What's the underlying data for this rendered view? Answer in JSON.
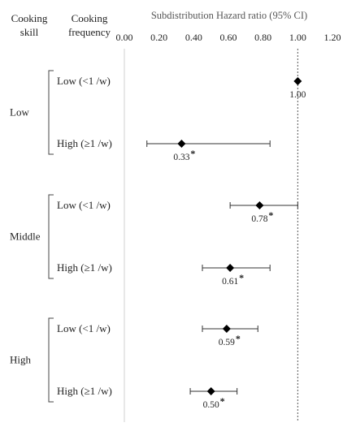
{
  "chart_data": {
    "type": "forest",
    "title": "Subdistribution Hazard ratio (95% CI)",
    "column_headers": {
      "skill": "Cooking skill",
      "frequency": "Cooking frequency"
    },
    "x_ticks": [
      "0.00",
      "0.20",
      "0.40",
      "0.60",
      "0.80",
      "1.00",
      "1.20"
    ],
    "xlim": [
      0,
      1.2
    ],
    "reference_line": 1.0,
    "groups": [
      {
        "skill": "Low",
        "rows": [
          {
            "frequency": "Low (<1 /w)",
            "value": 1.0,
            "ci_low": null,
            "ci_high": null,
            "label": "1.00",
            "significant": false
          },
          {
            "frequency": "High (≥1 /w)",
            "value": 0.33,
            "ci_low": 0.13,
            "ci_high": 0.84,
            "label": "0.33",
            "significant": true
          }
        ]
      },
      {
        "skill": "Middle",
        "rows": [
          {
            "frequency": "Low (<1 /w)",
            "value": 0.78,
            "ci_low": 0.61,
            "ci_high": 1.0,
            "label": "0.78",
            "significant": true
          },
          {
            "frequency": "High (≥1 /w)",
            "value": 0.61,
            "ci_low": 0.45,
            "ci_high": 0.84,
            "label": "0.61",
            "significant": true
          }
        ]
      },
      {
        "skill": "High",
        "rows": [
          {
            "frequency": "Low (<1 /w)",
            "value": 0.59,
            "ci_low": 0.45,
            "ci_high": 0.77,
            "label": "0.59",
            "significant": true
          },
          {
            "frequency": "High (≥1 /w)",
            "value": 0.5,
            "ci_low": 0.38,
            "ci_high": 0.65,
            "label": "0.50",
            "significant": true
          }
        ]
      }
    ],
    "significance_marker": "*"
  }
}
